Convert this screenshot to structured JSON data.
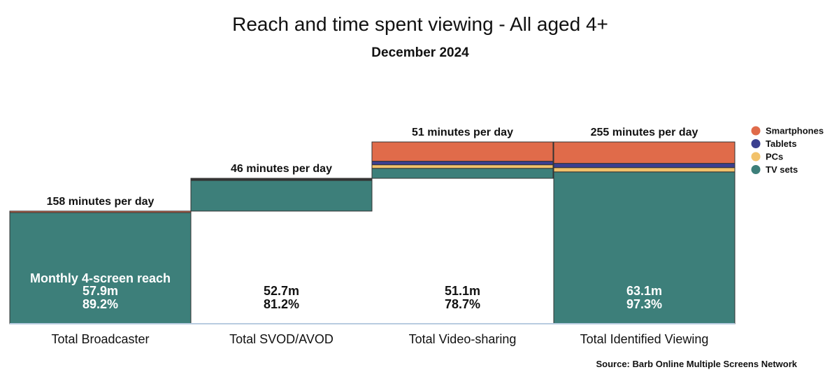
{
  "chart_data": {
    "type": "waterfall",
    "title": "Reach and time spent viewing - All aged 4+",
    "subtitle": "December 2024",
    "categories": [
      "Total Broadcaster",
      "Total SVOD/AVOD",
      "Total Video-sharing",
      "Total Identified Viewing"
    ],
    "minutes_labels": [
      "158 minutes per day",
      "46 minutes per day",
      "51 minutes per day",
      "255 minutes per day"
    ],
    "minutes_per_day": [
      158,
      46,
      51,
      255
    ],
    "reach_intro": "Monthly 4-screen reach",
    "reach_millions": [
      "57.9m",
      "52.7m",
      "51.1m",
      "63.1m"
    ],
    "reach_percent": [
      "89.2%",
      "81.2%",
      "78.7%",
      "97.3%"
    ],
    "series": [
      {
        "name": "TV sets",
        "color": "#3d7f7a",
        "values": [
          156,
          43,
          14,
          213
        ]
      },
      {
        "name": "PCs",
        "color": "#f2c26b",
        "values": [
          0,
          1,
          5,
          6
        ]
      },
      {
        "name": "Tablets",
        "color": "#3b3f8f",
        "values": [
          0,
          1,
          5,
          6
        ]
      },
      {
        "name": "Smartphones",
        "color": "#e06b4a",
        "values": [
          2,
          1,
          27,
          30
        ]
      }
    ],
    "legend": [
      "Smartphones",
      "Tablets",
      "PCs",
      "TV sets"
    ],
    "ylim": [
      0,
      255
    ],
    "source": "Source: Barb Online Multiple Screens Network"
  }
}
